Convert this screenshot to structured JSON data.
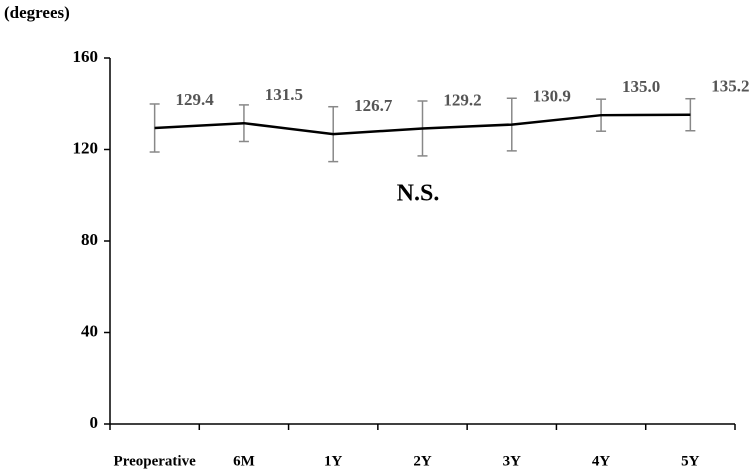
{
  "chart_data": {
    "type": "line",
    "y_label": "(degrees)",
    "annotation": "N.S.",
    "categories": [
      "Preoperative",
      "6M",
      "1Y",
      "2Y",
      "3Y",
      "4Y",
      "5Y"
    ],
    "series": [
      {
        "color": "#000000",
        "error_color": "#888888",
        "values": [
          129.4,
          131.5,
          126.7,
          129.2,
          130.9,
          135.0,
          135.2
        ],
        "value_labels": [
          "129.4",
          "131.5",
          "126.7",
          "129.2",
          "130.9",
          "135.0",
          "135.2"
        ],
        "errors": [
          10.5,
          8,
          12,
          12,
          11.5,
          7,
          7
        ]
      }
    ],
    "ylim": [
      0,
      160
    ],
    "yticks": [
      0,
      40,
      80,
      120,
      160
    ]
  }
}
